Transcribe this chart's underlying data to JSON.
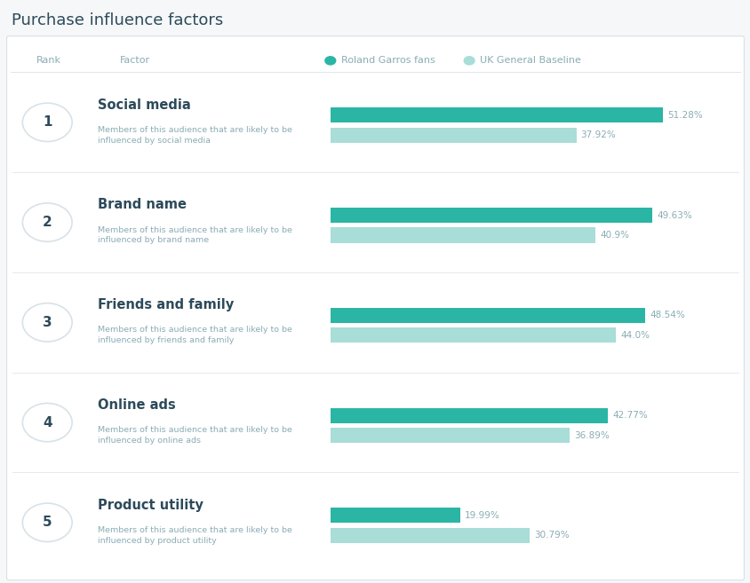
{
  "title": "Purchase influence factors",
  "title_color": "#2d4a5a",
  "title_fontsize": 13,
  "header_rank": "Rank",
  "header_factor": "Factor",
  "legend_series1": "Roland Garros fans",
  "legend_series2": "UK General Baseline",
  "color_series1": "#2ab5a5",
  "color_series2": "#a8ddd8",
  "label_color": "#8aacb5",
  "bg_color": "#ffffff",
  "outer_bg": "#f5f7f8",
  "border_color": "#d8e2e6",
  "factors": [
    {
      "rank": "1",
      "name": "Social media",
      "description": "Members of this audience that are likely to be\ninfluenced by social media",
      "value1": 51.28,
      "value2": 37.92
    },
    {
      "rank": "2",
      "name": "Brand name",
      "description": "Members of this audience that are likely to be\ninfluenced by brand name",
      "value1": 49.63,
      "value2": 40.9
    },
    {
      "rank": "3",
      "name": "Friends and family",
      "description": "Members of this audience that are likely to be\ninfluenced by friends and family",
      "value1": 48.54,
      "value2": 44.0
    },
    {
      "rank": "4",
      "name": "Online ads",
      "description": "Members of this audience that are likely to be\ninfluenced by online ads",
      "value1": 42.77,
      "value2": 36.89
    },
    {
      "rank": "5",
      "name": "Product utility",
      "description": "Members of this audience that are likely to be\ninfluenced by product utility",
      "value1": 19.99,
      "value2": 30.79
    }
  ],
  "bar_max": 55.0,
  "figsize": [
    8.45,
    6.57
  ],
  "dpi": 100
}
